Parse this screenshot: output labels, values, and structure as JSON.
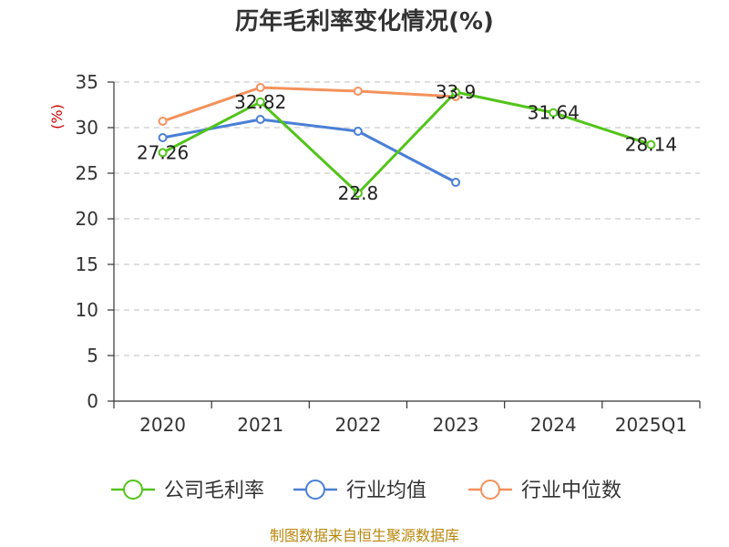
{
  "title": "历年毛利率变化情况(%)",
  "source": "制图数据来自恒生聚源数据库",
  "chart_data": {
    "type": "line",
    "title": "历年毛利率变化情况(%)",
    "ylabel": "(%)",
    "xlabel": "",
    "categories": [
      "2020",
      "2021",
      "2022",
      "2023",
      "2024",
      "2025Q1"
    ],
    "ylim": [
      0,
      35
    ],
    "yticks": [
      0,
      5,
      10,
      15,
      20,
      25,
      30,
      35
    ],
    "grid": "horizontal-dashed",
    "legend_position": "bottom",
    "series": [
      {
        "name": "公司毛利率",
        "color": "#52c41a",
        "values": [
          27.26,
          32.82,
          22.8,
          33.9,
          31.64,
          28.14
        ],
        "labels": true
      },
      {
        "name": "行业均值",
        "color": "#4a7fd6",
        "values": [
          28.9,
          30.9,
          29.6,
          24.0,
          null,
          null
        ],
        "labels": false
      },
      {
        "name": "行业中位数",
        "color": "#f4915b",
        "values": [
          30.7,
          34.4,
          34.0,
          33.4,
          null,
          null
        ],
        "labels": false
      }
    ]
  }
}
